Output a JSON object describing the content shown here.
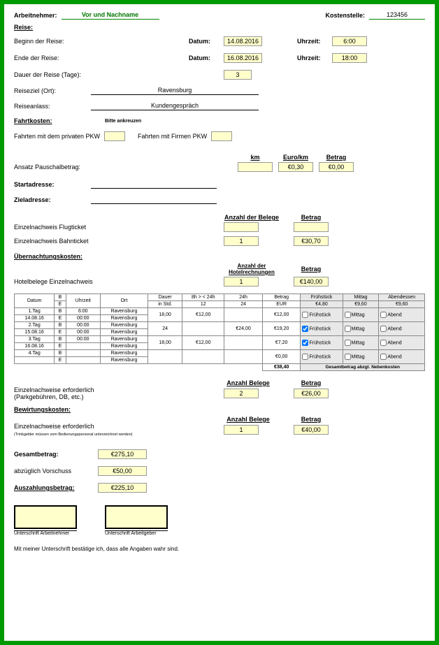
{
  "colors": {
    "border": "#009900",
    "fill": "#ffffcc",
    "gray": "#e8e8e8"
  },
  "hdr": {
    "employee_lbl": "Arbeitnehmer:",
    "name_lbl": "Vor und Nachname",
    "cost_lbl": "Kostenstelle:",
    "cost_val": "123456"
  },
  "reise": {
    "title": "Reise:",
    "begin_lbl": "Beginn der Reise:",
    "end_lbl": "Ende der Reise:",
    "datum_lbl": "Datum:",
    "uhrzeit_lbl": "Uhrzeit:",
    "begin_date": "14.08.2016",
    "begin_time": "6:00",
    "end_date": "16.08.2016",
    "end_time": "18:00",
    "dauer_lbl": "Dauer der Reise (Tage):",
    "dauer_val": "3",
    "ziel_lbl": "Reiseziel (Ort):",
    "ziel_val": "Ravensburg",
    "anlass_lbl": "Reiseanlass:",
    "anlass_val": "Kundengespräch"
  },
  "fahrt": {
    "title": "Fahrtkosten:",
    "ankreuzen": "Bitte ankreuzen",
    "privat_lbl": "Fahrten mit dem privaten PKW",
    "firmen_lbl": "Fahrten mit Firmen PKW",
    "km_lbl": "km",
    "eurokm_lbl": "Euro/km",
    "betrag_lbl": "Betrag",
    "pauschal_lbl": "Ansatz Pauschalbetrag:",
    "km_val": "",
    "eurokm_val": "€0,30",
    "betrag_val": "€0,00",
    "start_lbl": "Startadresse:",
    "ziel_lbl": "Zieladresse:",
    "anz_lbl": "Anzahl der Belege",
    "flug_lbl": "Einzelnachweis Flugticket",
    "flug_anz": "",
    "flug_betrag": "",
    "bahn_lbl": "Einzelnachweis Bahnticket",
    "bahn_anz": "1",
    "bahn_betrag": "€30,70"
  },
  "ueber": {
    "title": "Übernachtungskosten:",
    "anz_lbl": "Anzahl der Hotelrechnungen",
    "hotel_lbl": "Hotelbelege Einzelnachweis",
    "hotel_anz": "1",
    "hotel_betrag": "€140,00"
  },
  "table": {
    "cols": {
      "datum": "Datum",
      "be": "B",
      "e": "E",
      "uhrzeit": "Uhrzeit",
      "ort": "Ort",
      "dauer": "Dauer",
      "instd": "in Std.",
      "c8": "8h > < 24h",
      "v8": "12",
      "c24": "24h",
      "v24": "24",
      "betrag": "Betrag",
      "eur": "EUR",
      "fruh": "Frühstück",
      "mittag": "Mittag",
      "abend": "Abendessen",
      "h_fruh": "€4,80",
      "h_mittag": "€9,60",
      "h_abend": "€9,60"
    },
    "rows": [
      {
        "tag": "1.Tag",
        "d": "14.08.16",
        "bt": "6:00",
        "et": "00:00",
        "bo": "Ravensburg",
        "eo": "Ravensburg",
        "dauer": "18,00",
        "v8": "€12,00",
        "v24": "",
        "betrag": "€12,00",
        "ck": {
          "f": false,
          "m": false,
          "a": false
        },
        "labels": [
          "Frühstück",
          "Mittag",
          "Abend"
        ]
      },
      {
        "tag": "2.Tag",
        "d": "15.08.16",
        "bt": "00:00",
        "et": "00:00",
        "bo": "Ravensburg",
        "eo": "Ravensburg",
        "dauer": "24",
        "v8": "",
        "v24": "€24,00",
        "betrag": "€19,20",
        "ck": {
          "f": true,
          "m": false,
          "a": false
        },
        "labels": [
          "Frühstück",
          "Mittag",
          "Abend"
        ]
      },
      {
        "tag": "3.Tag",
        "d": "16.08.16",
        "bt": "00:00",
        "et": "",
        "bo": "Ravensburg",
        "eo": "Ravensburg",
        "dauer": "18,00",
        "v8": "€12,00",
        "v24": "",
        "betrag": "€7,20",
        "ck": {
          "f": true,
          "m": false,
          "a": false
        },
        "labels": [
          "Frühstück",
          "Mittag",
          "Abend"
        ]
      },
      {
        "tag": "4.Tag",
        "d": "",
        "bt": "",
        "et": "",
        "bo": "Ravensburg",
        "eo": "Ravensburg",
        "dauer": "",
        "v8": "",
        "v24": "",
        "betrag": "€0,00",
        "ck": {
          "f": false,
          "m": false,
          "a": false
        },
        "labels": [
          "Frühstück",
          "Mittag",
          "Abend"
        ]
      }
    ],
    "sum": "€38,40",
    "sum_lbl": "Gesamtbetrag abzgl. Nebenkosten"
  },
  "einzel": {
    "lbl": "Einzelnachweise erforderlich",
    "sub": "(Parkgebühren, DB, etc.)",
    "anz_lbl": "Anzahl Belege",
    "betrag_lbl": "Betrag",
    "anz": "2",
    "betrag": "€26,00"
  },
  "bewirt": {
    "title": "Bewirtungskosten:",
    "lbl": "Einzelnachweise erforderlich",
    "sub": "(Trinkgelder müssen vom Bedienungspersonal unterzeichnet werden)",
    "anz_lbl": "Anzahl Belege",
    "betrag_lbl": "Betrag",
    "anz": "1",
    "betrag": "€40,00"
  },
  "totals": {
    "gesamt_lbl": "Gesamtbetrag:",
    "gesamt": "€275,10",
    "vorschuss_lbl": "abzüglich Vorschuss",
    "vorschuss": "€50,00",
    "auszahl_lbl": "Auszahlungsbetrag:",
    "auszahl": "€225,10"
  },
  "sig": {
    "an": "Unterschrift Arbeitnehmer",
    "ag": "Unterschrift Arbeitgeber",
    "confirm": "Mit meiner Unterschrift bestätige ich, dass alle Angaben wahr sind."
  }
}
